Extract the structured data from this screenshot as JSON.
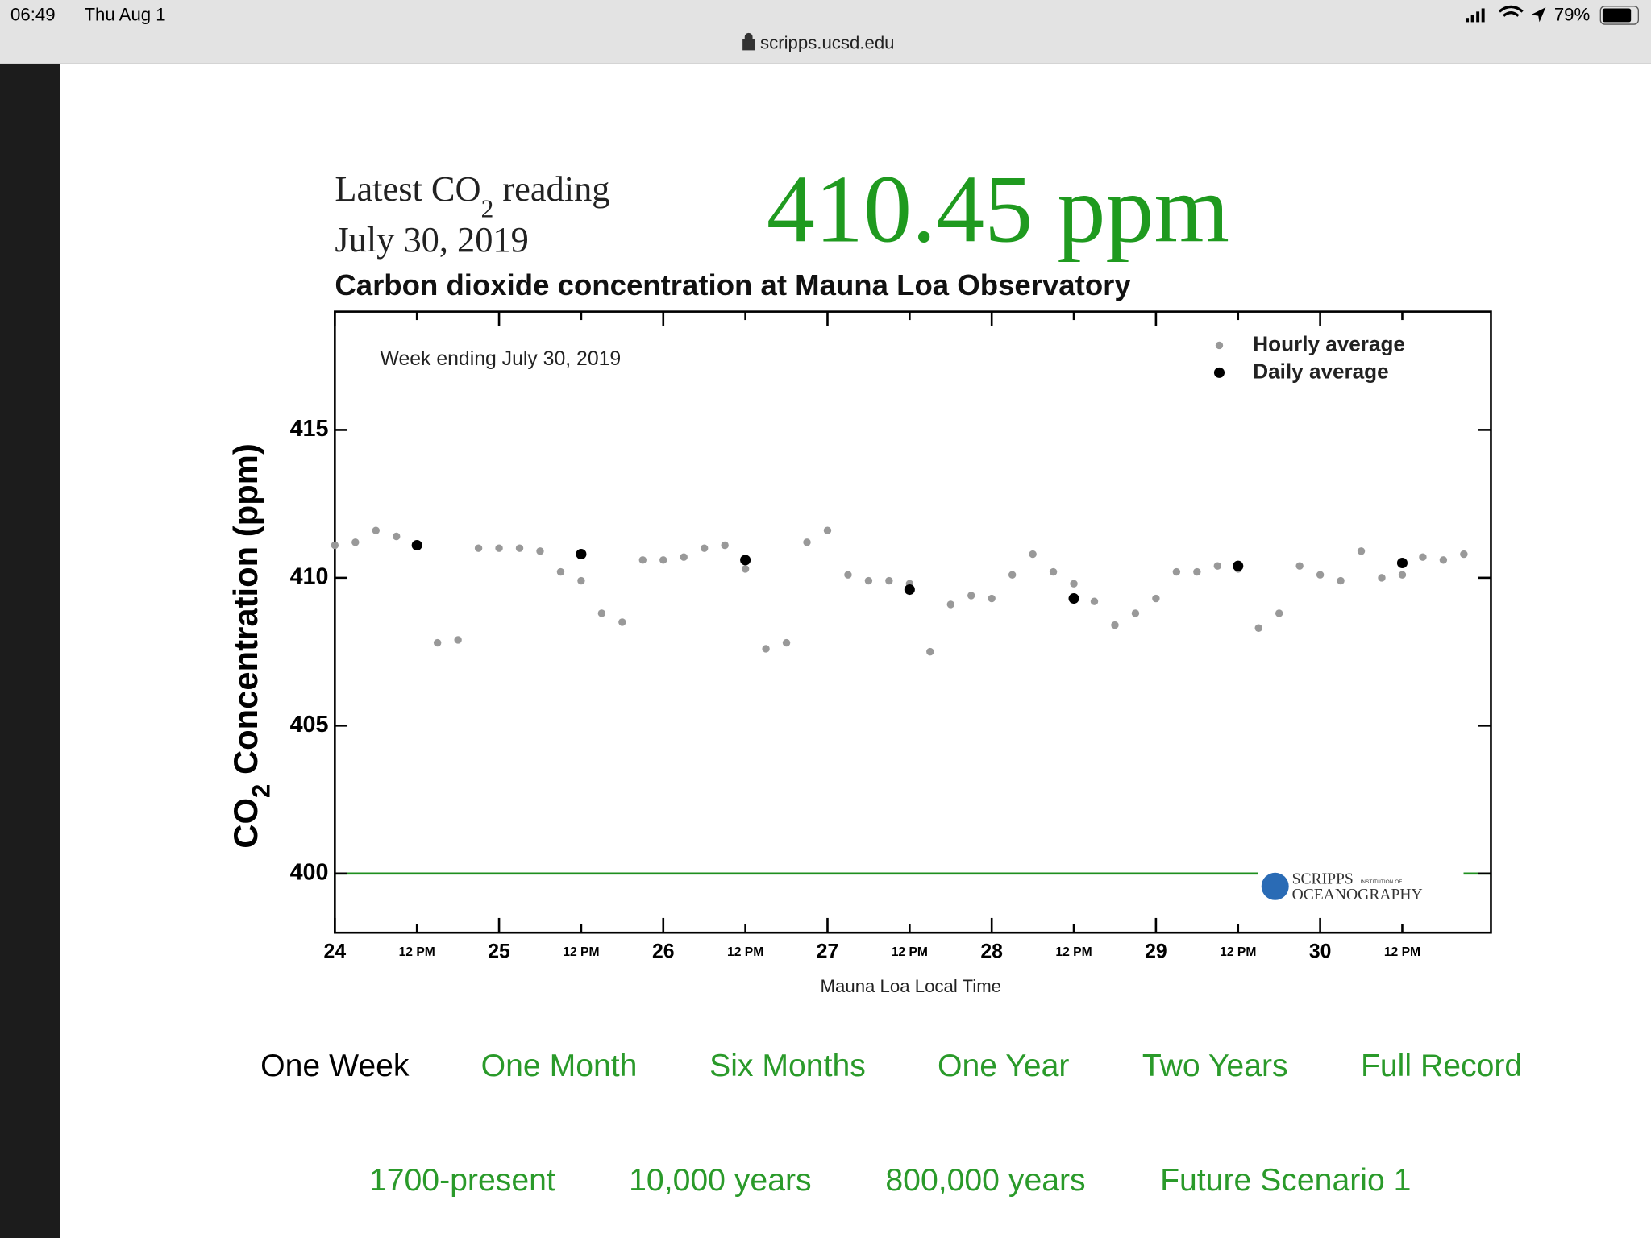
{
  "status_bar": {
    "time": "06:49",
    "date": "Thu Aug 1",
    "battery": "79%"
  },
  "url": "scripps.ucsd.edu",
  "header": {
    "reading_label": [
      "Latest CO",
      "2",
      " reading"
    ],
    "reading_date": "July 30, 2019",
    "latest_value": "410.45 ppm"
  },
  "chart_data": {
    "type": "scatter",
    "title": "Carbon dioxide concentration at Mauna Loa Observatory",
    "annotation": "Week ending July 30, 2019",
    "ylabel_parts": [
      "CO",
      "2",
      " Concentration (ppm)"
    ],
    "xlabel": "Mauna Loa Local Time",
    "xlim": [
      24,
      31.04
    ],
    "ylim": [
      398,
      419
    ],
    "yticks": [
      400,
      405,
      410,
      415
    ],
    "xticks": [
      24,
      {
        "value": 24.5,
        "label": "12 PM"
      },
      25,
      {
        "value": 25.5,
        "label": "12 PM"
      },
      26,
      {
        "value": 26.5,
        "label": "12 PM"
      },
      27,
      {
        "value": 27.5,
        "label": "12 PM"
      },
      28,
      {
        "value": 28.5,
        "label": "12 PM"
      },
      29,
      {
        "value": 29.5,
        "label": "12 PM"
      },
      30,
      {
        "value": 30.5,
        "label": "12 PM"
      }
    ],
    "reference_line": {
      "value": 400,
      "color": "#1f8f1f"
    },
    "legend": "upper right",
    "logo": [
      "SCRIPPS",
      "INSTITUTION OF",
      "OCEANOGRAPHY"
    ],
    "series": [
      {
        "name": "Hourly average",
        "color": "#999999",
        "x": [
          24,
          24.125,
          24.25,
          24.375,
          24.5,
          24.625,
          24.75,
          24.875,
          25,
          25.125,
          25.25,
          25.375,
          25.5,
          25.625,
          25.75,
          25.875,
          26,
          26.125,
          26.25,
          26.375,
          26.5,
          26.625,
          26.75,
          26.875,
          27,
          27.125,
          27.25,
          27.375,
          27.5,
          27.625,
          27.75,
          27.875,
          28,
          28.125,
          28.25,
          28.375,
          28.5,
          28.625,
          28.75,
          28.875,
          29,
          29.125,
          29.25,
          29.375,
          29.5,
          29.625,
          29.75,
          29.875,
          30,
          30.125,
          30.25,
          30.375,
          30.5,
          30.625,
          30.75,
          30.875
        ],
        "values": [
          411.1,
          411.2,
          411.6,
          411.4,
          411.1,
          407.8,
          407.9,
          411.0,
          411.0,
          411.0,
          410.9,
          410.2,
          409.9,
          408.8,
          408.5,
          410.6,
          410.6,
          410.7,
          411.0,
          411.1,
          410.3,
          407.6,
          407.8,
          411.2,
          411.6,
          410.1,
          409.9,
          409.9,
          409.8,
          407.5,
          409.1,
          409.4,
          409.3,
          410.1,
          410.8,
          410.2,
          409.8,
          409.2,
          408.4,
          408.8,
          409.3,
          410.2,
          410.2,
          410.4,
          410.3,
          408.3,
          408.8,
          410.4,
          410.1,
          409.9,
          410.9,
          410.0,
          410.1,
          410.7,
          410.6,
          410.8
        ]
      },
      {
        "name": "Daily average",
        "color": "#000000",
        "x": [
          24.5,
          25.5,
          26.5,
          27.5,
          28.5,
          29.5,
          30.5
        ],
        "values": [
          411.1,
          410.8,
          410.6,
          409.6,
          409.3,
          410.4,
          410.5
        ]
      }
    ]
  },
  "nav": {
    "row1": [
      "One Week",
      "One Month",
      "Six Months",
      "One Year",
      "Two Years",
      "Full Record"
    ],
    "row2": [
      "1700-present",
      "10,000 years",
      "800,000 years",
      "Future Scenario 1"
    ],
    "active": "One Week"
  }
}
